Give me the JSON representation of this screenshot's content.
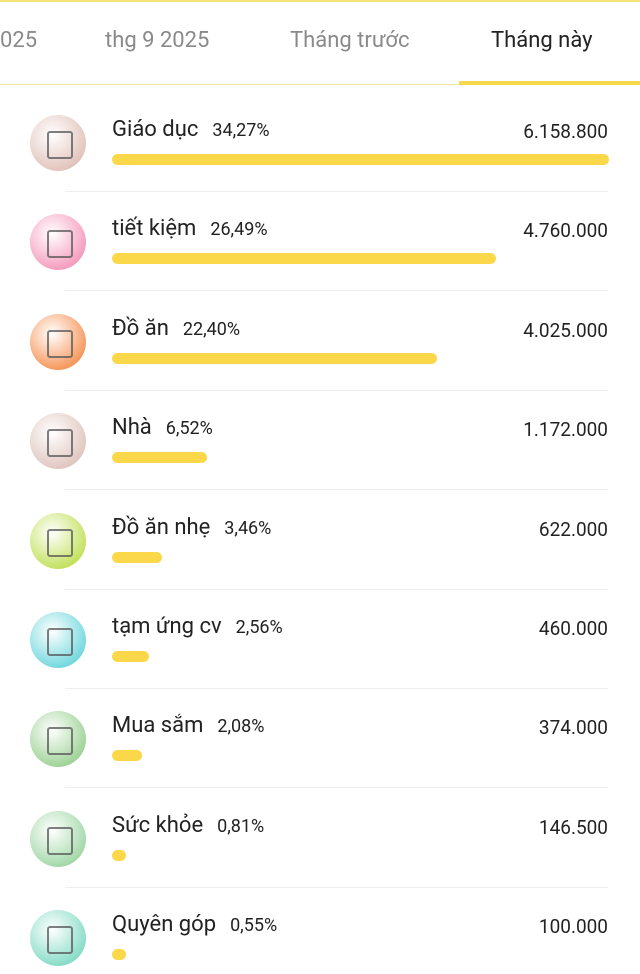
{
  "tabs": [
    "025",
    "thg 9 2025",
    "Tháng trước",
    "Tháng này"
  ],
  "selected_tab": 3,
  "items": [
    {
      "name": "Giáo dục",
      "percent": {
        "value": 34.27,
        "label": "34,27%"
      },
      "amount": "6.158.800",
      "color": "#e2c3bb"
    },
    {
      "name": "tiết kiệm",
      "percent": {
        "value": 26.49,
        "label": "26,49%"
      },
      "amount": "4.760.000",
      "color": "#f59bbd"
    },
    {
      "name": "Đồ ăn",
      "percent": {
        "value": 22.4,
        "label": "22,40%"
      },
      "amount": "4.025.000",
      "color": "#f6965a"
    },
    {
      "name": "Nhà",
      "percent": {
        "value": 6.52,
        "label": "6,52%"
      },
      "amount": "1.172.000",
      "color": "#e0c6bf"
    },
    {
      "name": "Đồ ăn nhẹ",
      "percent": {
        "value": 3.46,
        "label": "3,46%"
      },
      "amount": "622.000",
      "color": "#c2e15c"
    },
    {
      "name": "tạm ứng cv",
      "percent": {
        "value": 2.56,
        "label": "2,56%"
      },
      "amount": "460.000",
      "color": "#72d8de"
    },
    {
      "name": "Mua sắm",
      "percent": {
        "value": 2.08,
        "label": "2,08%"
      },
      "amount": "374.000",
      "color": "#9ed296"
    },
    {
      "name": "Sức khỏe",
      "percent": {
        "value": 0.81,
        "label": "0,81%"
      },
      "amount": "146.500",
      "color": "#a2d8a8"
    },
    {
      "name": "Quyên góp",
      "percent": {
        "value": 0.55,
        "label": "0,55%"
      },
      "amount": "100.000",
      "color": "#86dcc6"
    }
  ]
}
